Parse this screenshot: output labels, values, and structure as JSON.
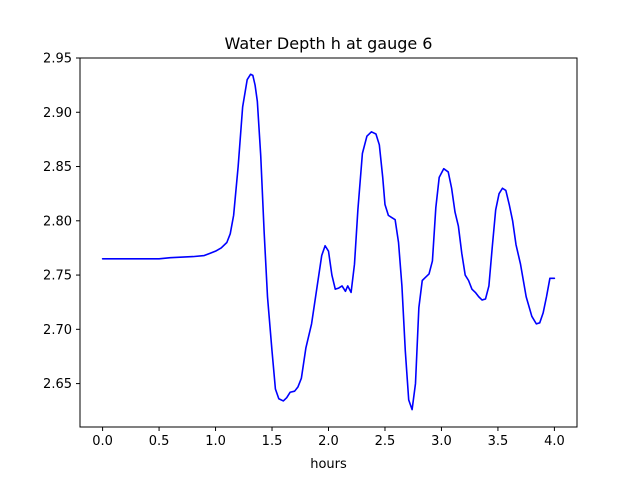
{
  "chart_data": {
    "type": "line",
    "title": "Water Depth h at gauge 6",
    "xlabel": "hours",
    "ylabel": "",
    "xlim": [
      -0.2,
      4.2
    ],
    "ylim": [
      2.61,
      2.95
    ],
    "xticks": [
      0.0,
      0.5,
      1.0,
      1.5,
      2.0,
      2.5,
      3.0,
      3.5,
      4.0
    ],
    "xtick_labels": [
      "0.0",
      "0.5",
      "1.0",
      "1.5",
      "2.0",
      "2.5",
      "3.0",
      "3.5",
      "4.0"
    ],
    "yticks": [
      2.65,
      2.7,
      2.75,
      2.8,
      2.85,
      2.9,
      2.95
    ],
    "ytick_labels": [
      "2.65",
      "2.70",
      "2.75",
      "2.80",
      "2.85",
      "2.90",
      "2.95"
    ],
    "grid": false,
    "series": [
      {
        "color": "#0000ff",
        "x": [
          0.0,
          0.2,
          0.4,
          0.5,
          0.6,
          0.8,
          0.9,
          0.95,
          1.0,
          1.05,
          1.1,
          1.13,
          1.16,
          1.2,
          1.24,
          1.28,
          1.31,
          1.33,
          1.35,
          1.37,
          1.4,
          1.43,
          1.46,
          1.5,
          1.53,
          1.56,
          1.6,
          1.63,
          1.66,
          1.7,
          1.73,
          1.76,
          1.8,
          1.85,
          1.9,
          1.94,
          1.97,
          2.0,
          2.03,
          2.06,
          2.09,
          2.12,
          2.15,
          2.17,
          2.2,
          2.23,
          2.26,
          2.3,
          2.34,
          2.38,
          2.42,
          2.45,
          2.48,
          2.5,
          2.53,
          2.56,
          2.59,
          2.62,
          2.65,
          2.68,
          2.71,
          2.74,
          2.77,
          2.8,
          2.83,
          2.86,
          2.89,
          2.92,
          2.95,
          2.98,
          3.02,
          3.06,
          3.09,
          3.12,
          3.15,
          3.18,
          3.21,
          3.24,
          3.27,
          3.3,
          3.33,
          3.36,
          3.39,
          3.42,
          3.45,
          3.48,
          3.51,
          3.54,
          3.57,
          3.6,
          3.63,
          3.66,
          3.7,
          3.75,
          3.8,
          3.84,
          3.87,
          3.9,
          3.93,
          3.96,
          4.0
        ],
        "y": [
          2.765,
          2.765,
          2.765,
          2.765,
          2.766,
          2.767,
          2.768,
          2.77,
          2.772,
          2.775,
          2.78,
          2.788,
          2.805,
          2.85,
          2.905,
          2.93,
          2.935,
          2.934,
          2.925,
          2.91,
          2.86,
          2.79,
          2.73,
          2.68,
          2.645,
          2.636,
          2.634,
          2.637,
          2.642,
          2.643,
          2.647,
          2.655,
          2.683,
          2.705,
          2.74,
          2.768,
          2.777,
          2.772,
          2.75,
          2.737,
          2.738,
          2.74,
          2.735,
          2.74,
          2.734,
          2.76,
          2.81,
          2.862,
          2.878,
          2.882,
          2.88,
          2.87,
          2.84,
          2.815,
          2.805,
          2.803,
          2.801,
          2.78,
          2.74,
          2.68,
          2.635,
          2.626,
          2.65,
          2.72,
          2.745,
          2.748,
          2.751,
          2.763,
          2.812,
          2.84,
          2.848,
          2.845,
          2.83,
          2.808,
          2.795,
          2.77,
          2.75,
          2.745,
          2.737,
          2.734,
          2.73,
          2.727,
          2.728,
          2.74,
          2.776,
          2.81,
          2.825,
          2.83,
          2.828,
          2.815,
          2.8,
          2.778,
          2.76,
          2.73,
          2.712,
          2.705,
          2.706,
          2.715,
          2.73,
          2.747,
          2.747
        ]
      }
    ]
  }
}
